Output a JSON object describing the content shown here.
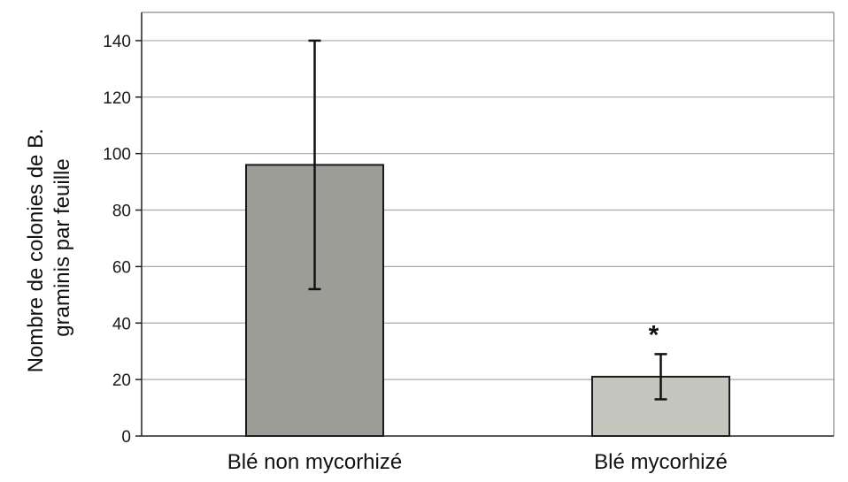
{
  "chart_data": {
    "type": "bar",
    "categories": [
      "Blé non mycorhizé",
      "Blé mycorhizé"
    ],
    "values": [
      96,
      21
    ],
    "error": [
      44,
      8
    ],
    "bar_colors": [
      "#9d9d97",
      "#c5c7be"
    ],
    "annotations": [
      "",
      "*"
    ],
    "ylabel": [
      "Nombre de colonies de B.",
      "graminis par feuille"
    ],
    "ylim": [
      0,
      150
    ],
    "yticks": [
      0,
      20,
      40,
      60,
      80,
      100,
      120,
      140
    ],
    "grid": true
  }
}
